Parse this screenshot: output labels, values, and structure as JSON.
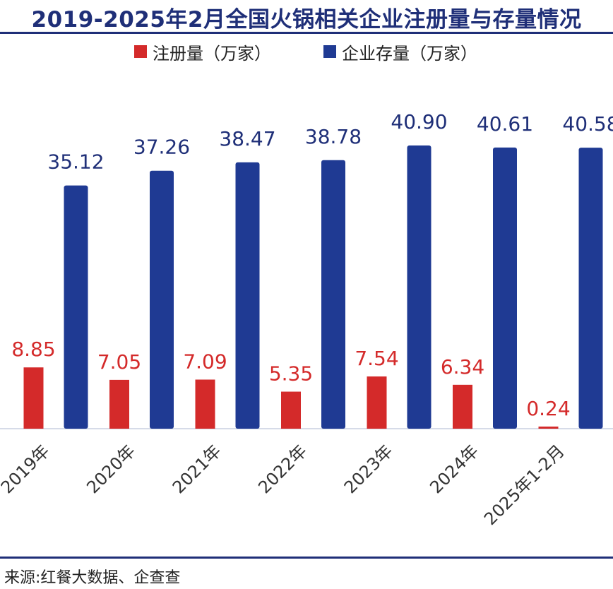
{
  "title": "2019-2025年2月全国火锅相关企业注册量与存量情况",
  "source": "来源:红餐大数据、企查查",
  "colors": {
    "registrations": "#d42a2a",
    "stock": "#1f3a93",
    "accent": "#1f2f78"
  },
  "chart_data": {
    "type": "bar",
    "title": "2019-2025年2月全国火锅相关企业注册量与存量情况",
    "categories": [
      "2019年",
      "2020年",
      "2021年",
      "2022年",
      "2023年",
      "2024年",
      "2025年1-2月"
    ],
    "series": [
      {
        "name": "注册量（万家）",
        "values": [
          8.85,
          7.05,
          7.09,
          5.35,
          7.54,
          6.34,
          0.24
        ]
      },
      {
        "name": "企业存量（万家）",
        "values": [
          35.12,
          37.26,
          38.47,
          38.78,
          40.9,
          40.61,
          40.58
        ]
      }
    ],
    "value_labels": {
      "registrations": [
        "8.85",
        "7.05",
        "7.09",
        "5.35",
        "7.54",
        "6.34",
        "0.24"
      ],
      "stock": [
        "35.12",
        "37.26",
        "38.47",
        "38.78",
        "40.90",
        "40.61",
        "40.58"
      ]
    },
    "xlabel": "",
    "ylabel": "",
    "ylim": [
      0,
      41
    ],
    "grid": false,
    "legend_position": "top"
  }
}
